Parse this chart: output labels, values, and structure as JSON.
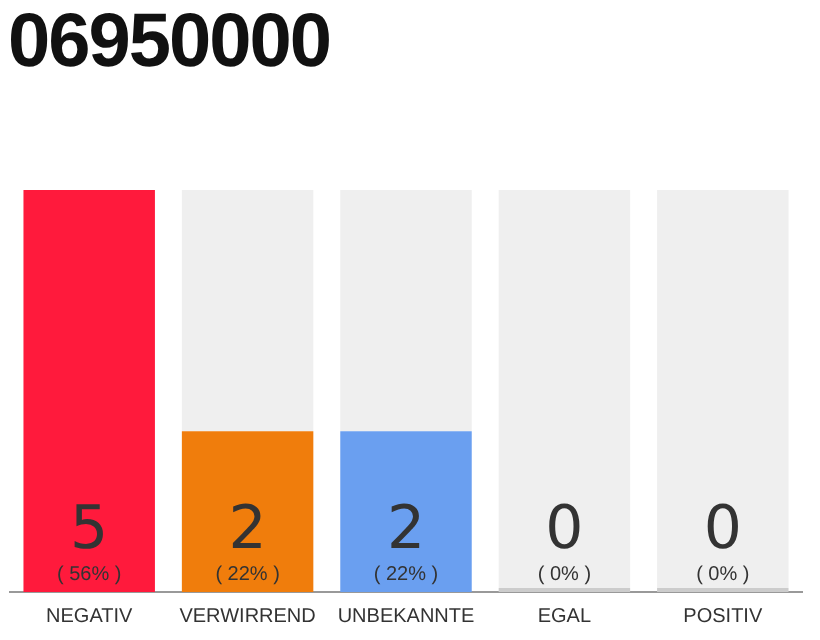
{
  "chart_data": {
    "type": "bar",
    "title": "06950000",
    "categories": [
      "NEGATIV",
      "VERWIRREND",
      "UNBEKANNTE",
      "EGAL",
      "POSITIV"
    ],
    "stacked": true,
    "series": [
      {
        "colors": [
          "#ff1a3c",
          "#f07d0c",
          "#6a9ff0",
          "#cccccc",
          "#cccccc"
        ],
        "values": [
          5,
          2,
          2,
          0,
          0
        ],
        "value_labels": [
          "5 ( 56% )",
          "2 ( 22% )",
          "2 ( 22% )",
          "0 ( 0% )",
          "0 ( 0% )"
        ]
      },
      {
        "color": "#efefef",
        "values": [
          0,
          3,
          3,
          5,
          5
        ]
      }
    ],
    "ylim": [
      0,
      5
    ],
    "tick_labels": "x",
    "grid": false,
    "legend": false
  }
}
